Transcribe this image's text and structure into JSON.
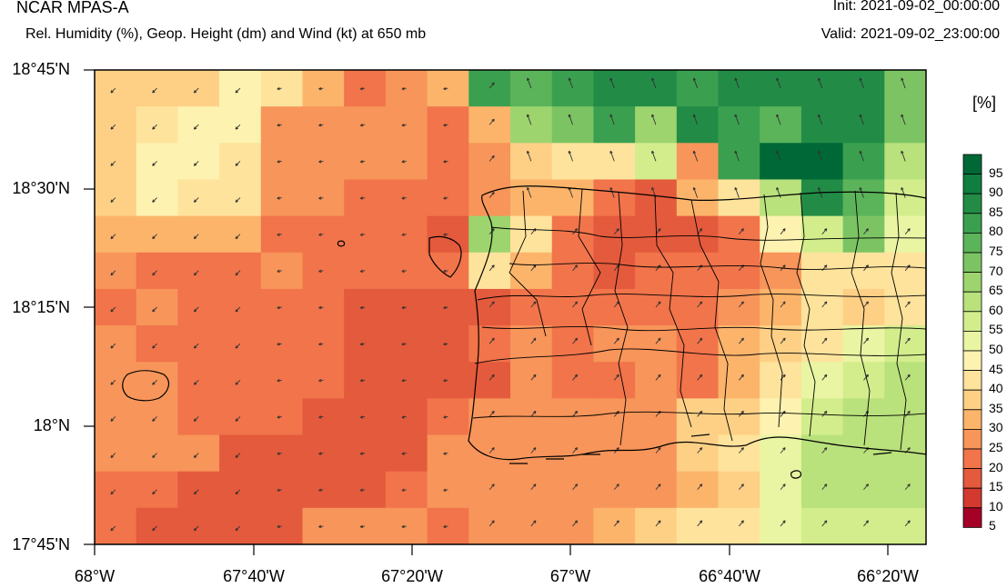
{
  "header": {
    "title": "NCAR MPAS-A",
    "subtitle": "Rel. Humidity (%), Geop. Height (dm) and Wind (kt) at 650 mb",
    "init": "Init: 2021-09-02_00:00:00",
    "valid": "Valid: 2021-09-02_23:00:00"
  },
  "axes": {
    "lat_labels": [
      "18°45'N",
      "18°30'N",
      "18°15'N",
      "18°N",
      "17°45'N"
    ],
    "lon_labels": [
      "68°W",
      "67°40'W",
      "67°20'W",
      "67°W",
      "66°40'W",
      "66°20'W"
    ]
  },
  "colorbar": {
    "unit": "[%]",
    "labels": [
      "95",
      "90",
      "85",
      "80",
      "75",
      "70",
      "65",
      "60",
      "55",
      "50",
      "45",
      "40",
      "35",
      "30",
      "25",
      "20",
      "15",
      "10",
      "5"
    ],
    "colors": [
      "#006837",
      "#0f7f3f",
      "#228c46",
      "#3aa04f",
      "#5bb45a",
      "#7cc463",
      "#9dd46e",
      "#b9e17c",
      "#d3ed8d",
      "#e9f5a3",
      "#fdf2b0",
      "#fee39c",
      "#fdd086",
      "#fcb46b",
      "#f8955a",
      "#f1744b",
      "#e45a3c",
      "#d3392e",
      "#a50026"
    ]
  },
  "rh_grid_cols": 20,
  "rh_grid": [
    [
      35,
      35,
      35,
      45,
      40,
      30,
      20,
      25,
      30,
      80,
      75,
      80,
      85,
      85,
      80,
      85,
      85,
      85,
      85,
      70
    ],
    [
      35,
      40,
      45,
      45,
      25,
      25,
      25,
      25,
      20,
      30,
      65,
      70,
      80,
      65,
      85,
      80,
      75,
      85,
      85,
      70
    ],
    [
      35,
      45,
      45,
      40,
      25,
      25,
      25,
      25,
      20,
      25,
      35,
      40,
      40,
      55,
      25,
      80,
      95,
      95,
      80,
      60
    ],
    [
      35,
      45,
      40,
      40,
      25,
      25,
      20,
      20,
      20,
      25,
      30,
      30,
      20,
      15,
      30,
      40,
      60,
      85,
      75,
      55
    ],
    [
      30,
      30,
      30,
      30,
      20,
      20,
      20,
      20,
      15,
      65,
      40,
      20,
      15,
      15,
      15,
      20,
      45,
      55,
      70,
      50
    ],
    [
      25,
      20,
      20,
      20,
      25,
      20,
      20,
      20,
      20,
      40,
      30,
      20,
      15,
      20,
      20,
      20,
      25,
      40,
      40,
      40
    ],
    [
      20,
      25,
      20,
      20,
      20,
      20,
      15,
      15,
      15,
      15,
      20,
      20,
      20,
      20,
      20,
      25,
      30,
      40,
      35,
      40
    ],
    [
      25,
      20,
      20,
      20,
      20,
      20,
      15,
      15,
      15,
      20,
      25,
      20,
      25,
      25,
      20,
      30,
      35,
      40,
      50,
      55
    ],
    [
      25,
      25,
      20,
      20,
      20,
      20,
      15,
      15,
      15,
      15,
      25,
      20,
      20,
      25,
      20,
      30,
      40,
      50,
      55,
      60
    ],
    [
      25,
      25,
      20,
      20,
      20,
      15,
      15,
      15,
      20,
      25,
      25,
      25,
      25,
      25,
      35,
      35,
      45,
      55,
      60,
      60
    ],
    [
      25,
      25,
      25,
      15,
      15,
      15,
      15,
      15,
      25,
      25,
      25,
      25,
      25,
      25,
      35,
      40,
      50,
      60,
      60,
      60
    ],
    [
      20,
      20,
      15,
      15,
      15,
      15,
      15,
      20,
      25,
      25,
      25,
      25,
      25,
      25,
      30,
      35,
      50,
      60,
      60,
      60
    ],
    [
      20,
      15,
      15,
      15,
      15,
      25,
      25,
      25,
      20,
      25,
      25,
      25,
      30,
      35,
      40,
      40,
      50,
      55,
      55,
      55
    ]
  ],
  "rh_levels": [
    5,
    10,
    15,
    20,
    25,
    30,
    35,
    40,
    45,
    50,
    55,
    60,
    65,
    70,
    75,
    80,
    85,
    90,
    95
  ]
}
